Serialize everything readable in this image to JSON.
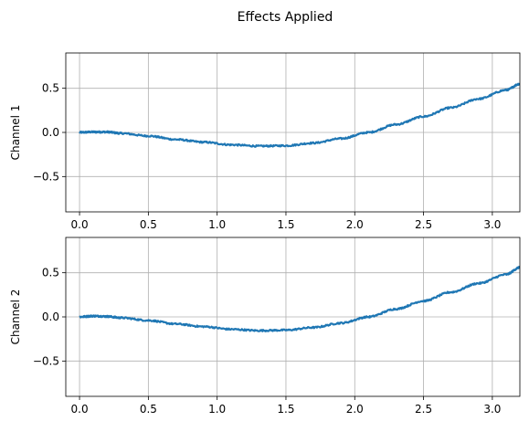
{
  "chart_data": {
    "type": "line",
    "title": "Effects Applied",
    "grid": true,
    "line_color": "#1f77b4",
    "subplots": [
      {
        "ylabel": "Channel 1",
        "xlim": [
          -0.1,
          3.2
        ],
        "ylim": [
          -0.9,
          0.9
        ],
        "xticks": [
          0.0,
          0.5,
          1.0,
          1.5,
          2.0,
          2.5,
          3.0
        ],
        "xtick_labels": [
          "0.0",
          "0.5",
          "1.0",
          "1.5",
          "2.0",
          "2.5",
          "3.0"
        ],
        "yticks": [
          0.5,
          0.0,
          -0.5
        ],
        "ytick_labels": [
          "0.5",
          "0.0",
          "−0.5"
        ],
        "series": [
          {
            "x": [
              0.0,
              0.1,
              0.2,
              0.3,
              0.5,
              0.7,
              0.9,
              1.1,
              1.3,
              1.5,
              1.7,
              1.9,
              2.1,
              2.3,
              2.5,
              2.7,
              2.9,
              3.1,
              3.2
            ],
            "y": [
              0.0,
              0.005,
              0.005,
              -0.01,
              -0.04,
              -0.08,
              -0.11,
              -0.14,
              -0.155,
              -0.15,
              -0.12,
              -0.07,
              0.0,
              0.09,
              0.18,
              0.28,
              0.38,
              0.48,
              0.55
            ]
          }
        ]
      },
      {
        "ylabel": "Channel 2",
        "xlim": [
          -0.1,
          3.2
        ],
        "ylim": [
          -0.9,
          0.9
        ],
        "xticks": [
          0.0,
          0.5,
          1.0,
          1.5,
          2.0,
          2.5,
          3.0
        ],
        "xtick_labels": [
          "0.0",
          "0.5",
          "1.0",
          "1.5",
          "2.0",
          "2.5",
          "3.0"
        ],
        "yticks": [
          0.5,
          0.0,
          -0.5
        ],
        "ytick_labels": [
          "0.5",
          "0.0",
          "−0.5"
        ],
        "series": [
          {
            "x": [
              0.0,
              0.1,
              0.2,
              0.3,
              0.5,
              0.7,
              0.9,
              1.1,
              1.3,
              1.5,
              1.7,
              1.9,
              2.1,
              2.3,
              2.5,
              2.7,
              2.9,
              3.1,
              3.2
            ],
            "y": [
              0.0,
              0.01,
              0.005,
              -0.01,
              -0.04,
              -0.08,
              -0.11,
              -0.14,
              -0.155,
              -0.15,
              -0.12,
              -0.07,
              0.0,
              0.09,
              0.18,
              0.28,
              0.38,
              0.48,
              0.56
            ]
          }
        ]
      }
    ]
  }
}
